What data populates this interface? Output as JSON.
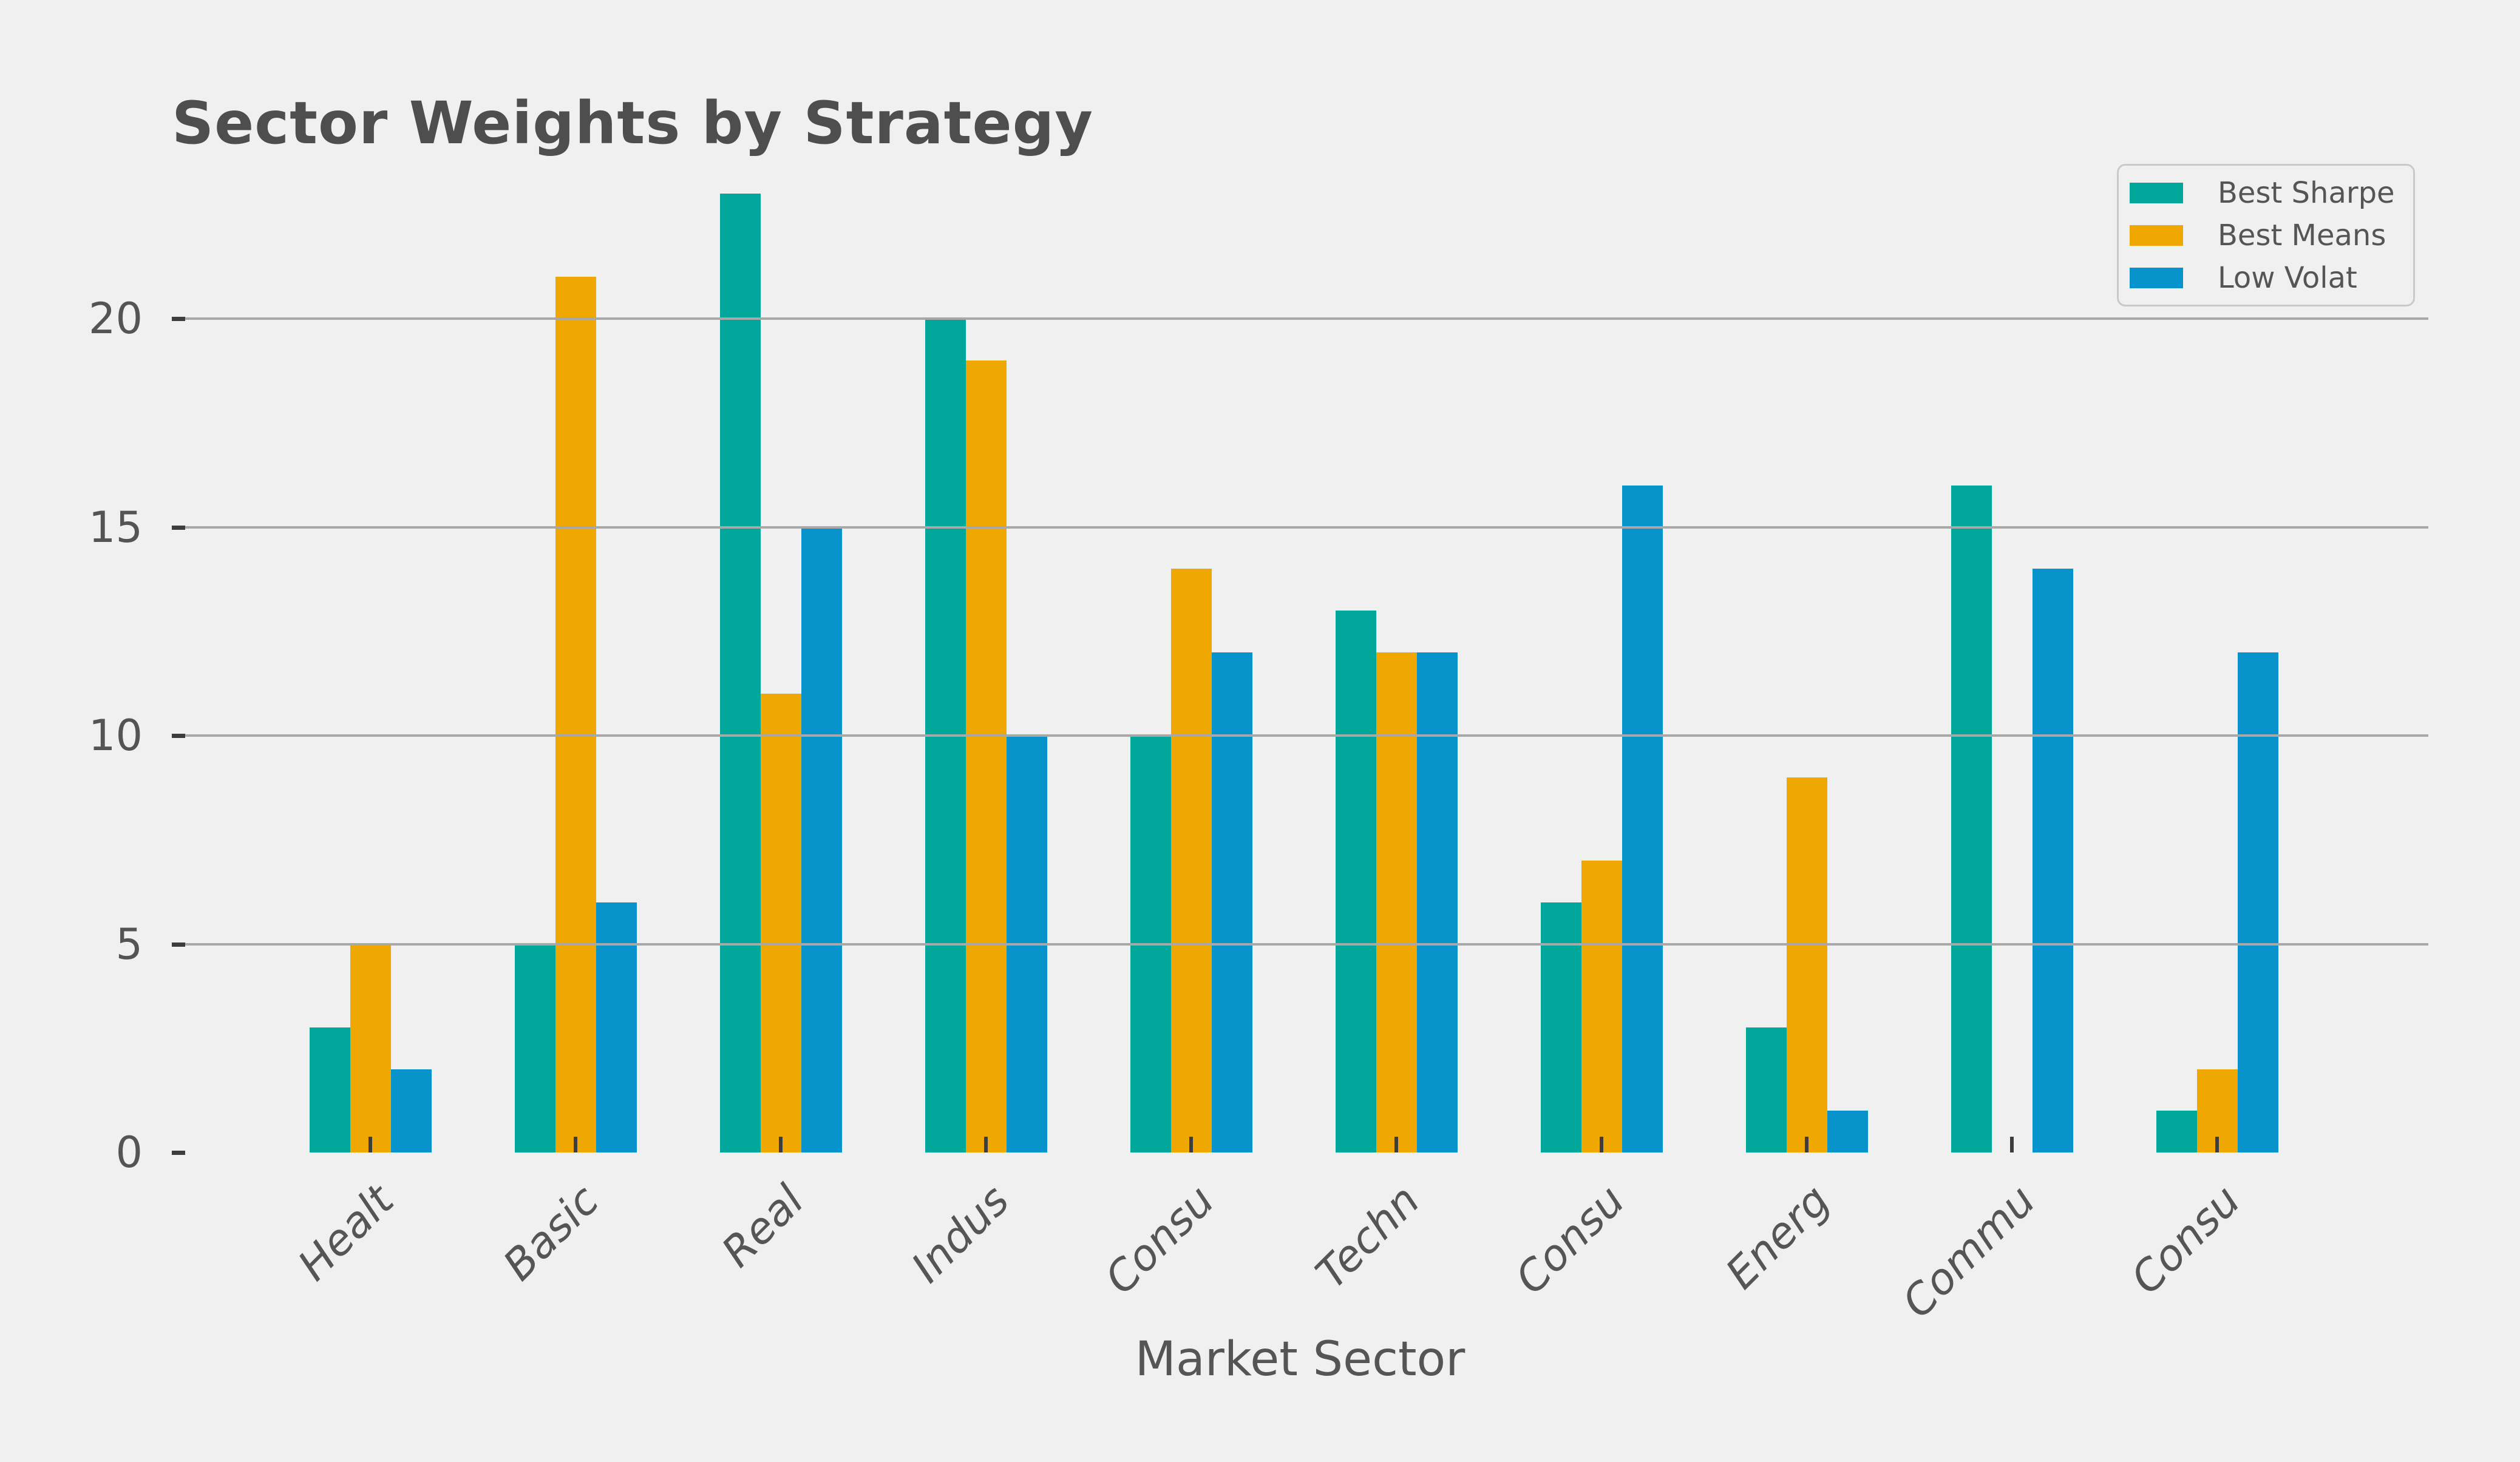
{
  "chart": {
    "background_color": "#f0f0f0",
    "grid_color": "#a8a8a8",
    "tick_mark_color": "#3d3d3d",
    "tick_label_color": "#545454",
    "text_color": "#555555",
    "title_color": "#4e4e4e",
    "title": "Sector Weights by Strategy",
    "xlabel": "Market Sector"
  },
  "chart_data": {
    "type": "bar",
    "title": "Sector Weights by Strategy",
    "xlabel": "Market Sector",
    "ylabel": "",
    "categories": [
      "Healt",
      "Basic",
      "Real",
      "Indus",
      "Consu",
      "Techn",
      "Consu",
      "Energ",
      "Commu",
      "Consu"
    ],
    "series": [
      {
        "name": "Best Sharpe",
        "color": "#02A79B",
        "values": [
          3,
          5,
          23,
          20,
          10,
          13,
          6,
          3,
          16,
          1
        ]
      },
      {
        "name": "Best Means",
        "color": "#EFA702",
        "values": [
          5,
          21,
          11,
          19,
          14,
          12,
          7,
          9,
          0,
          2
        ]
      },
      {
        "name": "Low Volat",
        "color": "#0894CA",
        "values": [
          2,
          6,
          15,
          10,
          12,
          12,
          16,
          1,
          14,
          12
        ]
      }
    ],
    "yticks": [
      0,
      5,
      10,
      15,
      20
    ],
    "ylim": [
      0,
      24.15
    ],
    "grid": true,
    "legend_position": "upper right"
  }
}
